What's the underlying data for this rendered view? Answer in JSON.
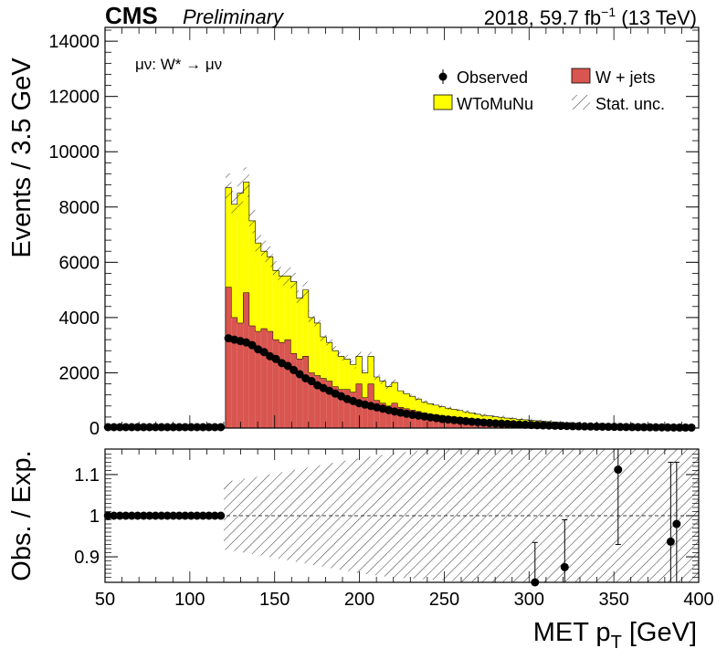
{
  "header": {
    "experiment": "CMS",
    "status": "Preliminary",
    "lumi_prefix": "2018, 59.7 fb",
    "lumi_exp": "−1",
    "lumi_suffix": " (13 TeV)"
  },
  "annotation": "μν: W* → μν",
  "legend": {
    "observed": "Observed",
    "wjets": "W + jets",
    "wtomunu": "WToMuNu",
    "stat": "Stat. unc."
  },
  "colors": {
    "wjets": "#d9554f",
    "wtomunu": "#ffff00",
    "observed": "#000000"
  },
  "chart_data": [
    {
      "type": "bar",
      "stacked": true,
      "xlabel_main": "MET p",
      "xlabel_sub": "T",
      "xlabel_unit": " [GeV]",
      "ylabel": "Events / 3.5 GeV",
      "xlim": [
        50,
        400
      ],
      "ylim": [
        0,
        14500
      ],
      "yticks": [
        0,
        2000,
        4000,
        6000,
        8000,
        10000,
        12000,
        14000
      ],
      "bin_width": 3.5,
      "x": [
        122.75,
        126.25,
        129.75,
        133.25,
        136.75,
        140.25,
        143.75,
        147.25,
        150.75,
        154.25,
        157.75,
        161.25,
        164.75,
        168.25,
        171.75,
        175.25,
        178.75,
        182.25,
        185.75,
        189.25,
        192.75,
        196.25,
        199.75,
        203.25,
        206.75,
        210.25,
        213.75,
        217.25,
        220.75,
        224.25,
        227.75,
        231.25,
        234.75,
        238.25,
        241.75,
        245.25,
        248.75,
        252.25,
        255.75,
        259.25,
        262.75,
        266.25,
        269.75,
        273.25,
        276.75,
        280.25,
        283.75,
        287.25,
        290.75,
        294.25,
        297.75,
        301.25,
        304.75,
        308.25,
        311.75,
        315.25,
        318.75,
        322.25,
        325.75,
        329.25,
        332.75,
        336.25,
        339.75,
        343.25,
        346.75,
        350.25,
        353.75,
        357.25,
        360.75,
        364.25,
        367.75,
        371.25,
        374.75,
        378.25,
        381.75,
        385.25,
        388.75,
        392.25,
        395.75
      ],
      "series": [
        {
          "name": "W + jets",
          "values": [
            5100,
            4000,
            3800,
            4900,
            3700,
            3500,
            3600,
            3500,
            3200,
            3100,
            3200,
            2700,
            2500,
            2600,
            2000,
            1900,
            1800,
            1700,
            1500,
            1400,
            1400,
            1300,
            1600,
            1100,
            1600,
            1000,
            900,
            800,
            900,
            750,
            700,
            650,
            600,
            550,
            500,
            480,
            450,
            420,
            400,
            380,
            350,
            330,
            300,
            280,
            270,
            250,
            240,
            220,
            210,
            200,
            190,
            180,
            170,
            160,
            150,
            140,
            130,
            120,
            110,
            100,
            95,
            90,
            85,
            80,
            75,
            70,
            65,
            60,
            55,
            50,
            48,
            45,
            42,
            40,
            38,
            35,
            33,
            30,
            28
          ]
        },
        {
          "name": "WToMuNu",
          "values": [
            3600,
            4100,
            4700,
            4000,
            3800,
            3200,
            2800,
            2700,
            2500,
            2400,
            2300,
            2600,
            2200,
            2400,
            2000,
            1900,
            1500,
            1400,
            1300,
            1200,
            1100,
            1000,
            1000,
            900,
            1000,
            850,
            800,
            700,
            750,
            600,
            550,
            500,
            450,
            400,
            380,
            350,
            320,
            300,
            280,
            260,
            240,
            220,
            200,
            180,
            170,
            160,
            150,
            140,
            130,
            120,
            110,
            100,
            95,
            90,
            85,
            80,
            75,
            70,
            65,
            60,
            55,
            50,
            48,
            45,
            42,
            40,
            38,
            35,
            33,
            30,
            28,
            26,
            24,
            22,
            20,
            18,
            17,
            16,
            15
          ]
        }
      ],
      "observed": {
        "name": "Observed",
        "x": [
          122.75,
          126.25,
          129.75,
          133.25,
          136.75,
          140.25,
          143.75,
          147.25,
          150.75,
          154.25,
          157.75,
          161.25,
          164.75,
          168.25,
          171.75,
          175.25,
          178.75,
          182.25,
          185.75,
          189.25,
          192.75,
          196.25,
          199.75,
          203.25,
          206.75,
          210.25,
          213.75,
          217.25,
          220.75,
          224.25,
          227.75,
          231.25,
          234.75,
          238.25,
          241.75,
          245.25,
          248.75,
          252.25,
          255.75,
          259.25,
          262.75,
          266.25,
          269.75,
          273.25,
          276.75,
          280.25,
          283.75,
          287.25,
          290.75,
          294.25,
          297.75,
          301.25,
          304.75,
          308.25,
          311.75,
          315.25,
          318.75,
          322.25,
          325.75,
          329.25,
          332.75,
          336.25,
          339.75,
          343.25,
          346.75,
          350.25,
          353.75,
          357.25,
          360.75,
          364.25,
          367.75,
          371.25,
          374.75,
          378.25,
          381.75,
          385.25,
          388.75,
          392.25,
          395.75
        ],
        "values": [
          3250,
          3200,
          3150,
          3100,
          3000,
          2850,
          2750,
          2600,
          2500,
          2350,
          2250,
          2100,
          1950,
          1800,
          1700,
          1550,
          1450,
          1350,
          1250,
          1150,
          1050,
          980,
          900,
          850,
          800,
          750,
          700,
          650,
          600,
          560,
          520,
          480,
          450,
          420,
          390,
          360,
          330,
          310,
          290,
          270,
          250,
          230,
          215,
          200,
          185,
          170,
          160,
          150,
          140,
          130,
          120,
          112,
          105,
          98,
          92,
          86,
          80,
          75,
          70,
          65,
          61,
          57,
          53,
          50,
          47,
          44,
          41,
          38,
          36,
          34,
          32,
          30,
          28,
          26,
          24,
          22,
          20,
          19,
          18
        ]
      }
    },
    {
      "type": "scatter",
      "xlabel": "MET p_T [GeV]",
      "ylabel": "Obs. / Exp.",
      "xlim": [
        50,
        400
      ],
      "ylim": [
        0.838,
        1.162
      ],
      "yticks": [
        0.9,
        1,
        1.1
      ],
      "xticks": [
        50,
        100,
        150,
        200,
        250,
        300,
        350,
        400
      ],
      "reference_line": 1,
      "ratio_points": {
        "x": [
          51.75,
          55.25,
          58.75,
          62.25,
          65.75,
          69.25,
          72.75,
          76.25,
          79.75,
          83.25,
          86.75,
          90.25,
          93.75,
          97.25,
          100.75,
          104.25,
          107.75,
          111.25,
          114.75,
          118.25
        ],
        "values": [
          1,
          1,
          1,
          1,
          1,
          1,
          1,
          1,
          1,
          1,
          1,
          1,
          1,
          1,
          1,
          1,
          1,
          1,
          1,
          1
        ]
      },
      "ratio_errorbars": [
        {
          "x": 303.5,
          "y": 0.838,
          "low": 0.838,
          "high": 0.935
        },
        {
          "x": 321.0,
          "y": 0.875,
          "low": 0.838,
          "high": 0.99
        },
        {
          "x": 352.5,
          "y": 1.112,
          "low": 0.93,
          "high": 1.162
        },
        {
          "x": 383.5,
          "y": 0.937,
          "low": 0.838,
          "high": 1.13
        },
        {
          "x": 387.0,
          "y": 0.98,
          "low": 0.838,
          "high": 1.13
        }
      ],
      "stat_band": {
        "x": [
          120,
          140,
          160,
          180,
          200,
          220,
          240,
          260,
          280,
          300,
          320,
          340,
          360,
          380,
          400
        ],
        "low": [
          0.918,
          0.905,
          0.89,
          0.875,
          0.86,
          0.85,
          0.845,
          0.84,
          0.838,
          0.838,
          0.838,
          0.838,
          0.838,
          0.838,
          0.838
        ],
        "high": [
          1.082,
          1.095,
          1.11,
          1.125,
          1.14,
          1.152,
          1.16,
          1.162,
          1.162,
          1.162,
          1.162,
          1.162,
          1.162,
          1.162,
          1.162
        ]
      }
    }
  ]
}
